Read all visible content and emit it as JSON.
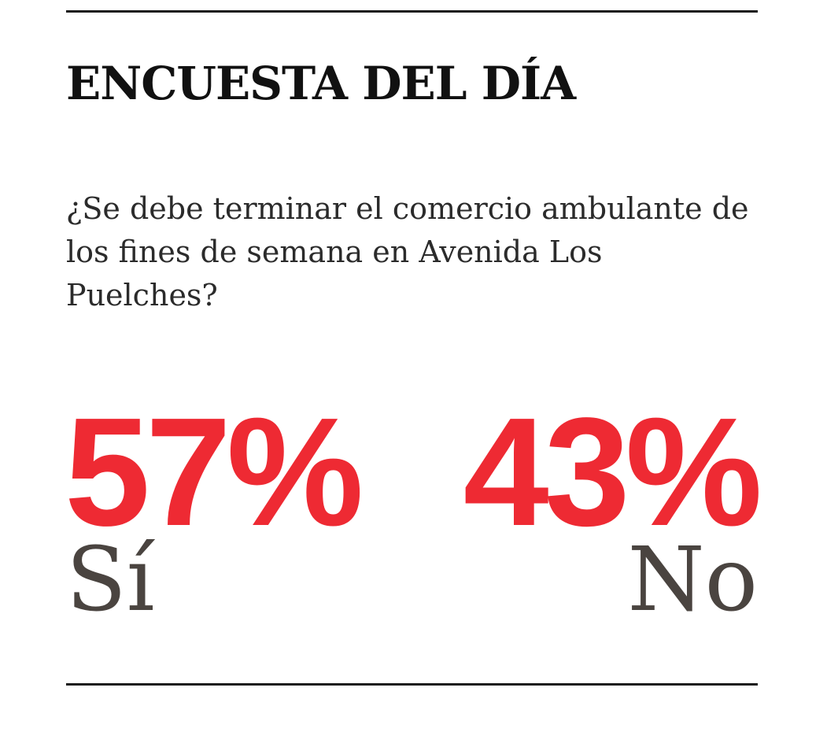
{
  "title": "ENCUESTA DEL DÍA",
  "question": "¿Se debe terminar el comercio ambulante de los fines de semana en Avenida Los Puelches?",
  "colors": {
    "accent": "#ee2a33",
    "label": "#4a4440"
  },
  "chart_data": {
    "type": "table",
    "title": "ENCUESTA DEL DÍA",
    "categories": [
      "Sí",
      "No"
    ],
    "values": [
      57,
      43
    ],
    "labels": [
      "57%",
      "43%"
    ]
  }
}
